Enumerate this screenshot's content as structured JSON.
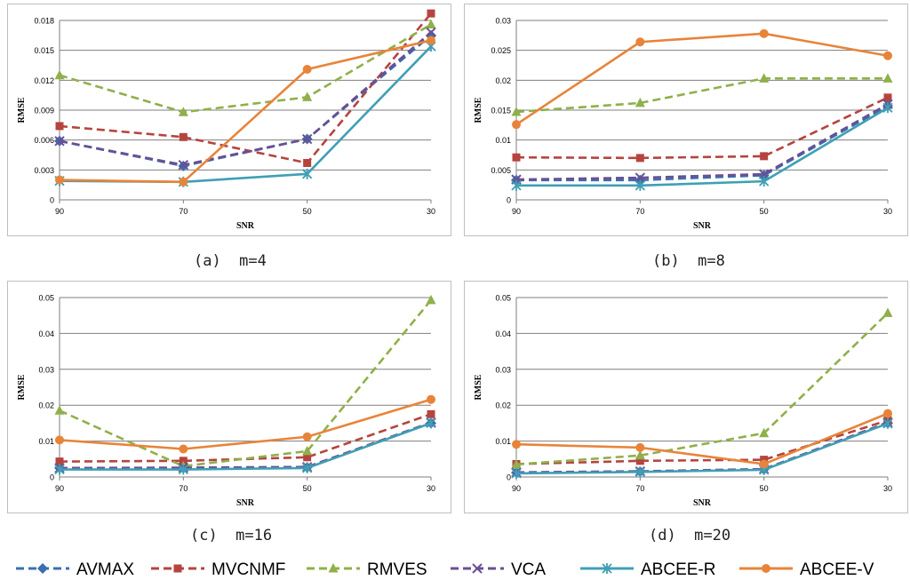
{
  "legend": {
    "items": [
      {
        "name": "AVMAX",
        "color": "#3a6fb0",
        "marker": "diamond",
        "dashed": true
      },
      {
        "name": "MVCNMF",
        "color": "#b5443f",
        "marker": "square",
        "dashed": true
      },
      {
        "name": "RMVES",
        "color": "#8fb04a",
        "marker": "triangle",
        "dashed": true
      },
      {
        "name": "VCA",
        "color": "#6b4f93",
        "marker": "x",
        "dashed": true
      },
      {
        "name": "ABCEE-R",
        "color": "#3f9fb5",
        "marker": "star",
        "dashed": false
      },
      {
        "name": "ABCEE-V",
        "color": "#e8843a",
        "marker": "circle",
        "dashed": false
      }
    ]
  },
  "chart_data": [
    {
      "type": "line",
      "caption": "(a)  m=4",
      "categories": [
        "90",
        "70",
        "50",
        "30"
      ],
      "xlabel": "SNR",
      "ylabel": "RMSE",
      "ylim": [
        0,
        0.018
      ],
      "yticks": [
        0,
        0.003,
        0.006,
        0.009,
        0.012,
        0.015,
        0.018
      ],
      "yticklabels": [
        "0",
        "0.003",
        "0.006",
        "0.009",
        "0.012",
        "0.015",
        "0.018"
      ],
      "series": [
        {
          "name": "AVMAX",
          "values": [
            0.0059,
            0.0034,
            0.0061,
            0.0165
          ]
        },
        {
          "name": "MVCNMF",
          "values": [
            0.0074,
            0.0063,
            0.0037,
            0.0187
          ]
        },
        {
          "name": "RMVES",
          "values": [
            0.0125,
            0.0088,
            0.0103,
            0.0176
          ]
        },
        {
          "name": "VCA",
          "values": [
            0.0059,
            0.0035,
            0.0061,
            0.0168
          ]
        },
        {
          "name": "ABCEE-R",
          "values": [
            0.0019,
            0.0018,
            0.0026,
            0.0154
          ]
        },
        {
          "name": "ABCEE-V",
          "values": [
            0.002,
            0.0018,
            0.0131,
            0.016
          ]
        }
      ]
    },
    {
      "type": "line",
      "caption": "(b)  m=8",
      "categories": [
        "90",
        "70",
        "50",
        "30"
      ],
      "xlabel": "SNR",
      "ylabel": "RMSE",
      "ylim": [
        0,
        0.03
      ],
      "yticks": [
        0,
        0.005,
        0.01,
        0.015,
        0.02,
        0.025,
        0.03
      ],
      "yticklabels": [
        "0",
        "0.005",
        "0.01",
        "0.015",
        "0.02",
        "0.025",
        "0.03"
      ],
      "series": [
        {
          "name": "AVMAX",
          "values": [
            0.0033,
            0.0033,
            0.0041,
            0.0157
          ]
        },
        {
          "name": "MVCNMF",
          "values": [
            0.0071,
            0.007,
            0.0073,
            0.0171
          ]
        },
        {
          "name": "RMVES",
          "values": [
            0.0147,
            0.0162,
            0.0203,
            0.0203
          ]
        },
        {
          "name": "VCA",
          "values": [
            0.0034,
            0.0037,
            0.0043,
            0.016
          ]
        },
        {
          "name": "ABCEE-R",
          "values": [
            0.0024,
            0.0024,
            0.0031,
            0.0154
          ]
        },
        {
          "name": "ABCEE-V",
          "values": [
            0.0126,
            0.0264,
            0.0278,
            0.0241
          ]
        }
      ]
    },
    {
      "type": "line",
      "caption": "(c)  m=16",
      "categories": [
        "90",
        "70",
        "50",
        "30"
      ],
      "xlabel": "SNR",
      "ylabel": "RMSE",
      "ylim": [
        0,
        0.05
      ],
      "yticks": [
        0,
        0.01,
        0.02,
        0.03,
        0.04,
        0.05
      ],
      "yticklabels": [
        "0",
        "0.01",
        "0.02",
        "0.03",
        "0.04",
        "0.05"
      ],
      "series": [
        {
          "name": "AVMAX",
          "values": [
            0.0025,
            0.0025,
            0.0027,
            0.015
          ]
        },
        {
          "name": "MVCNMF",
          "values": [
            0.0043,
            0.0045,
            0.0055,
            0.0175
          ]
        },
        {
          "name": "RMVES",
          "values": [
            0.0185,
            0.003,
            0.0072,
            0.0493
          ]
        },
        {
          "name": "VCA",
          "values": [
            0.0025,
            0.0026,
            0.0028,
            0.0152
          ]
        },
        {
          "name": "ABCEE-R",
          "values": [
            0.0021,
            0.0021,
            0.0025,
            0.015
          ]
        },
        {
          "name": "ABCEE-V",
          "values": [
            0.0103,
            0.0078,
            0.0112,
            0.0216
          ]
        }
      ]
    },
    {
      "type": "line",
      "caption": "(d)  m=20",
      "categories": [
        "90",
        "70",
        "50",
        "30"
      ],
      "xlabel": "SNR",
      "ylabel": "RMSE",
      "ylim": [
        0,
        0.05
      ],
      "yticks": [
        0,
        0.01,
        0.02,
        0.03,
        0.04,
        0.05
      ],
      "yticklabels": [
        "0",
        "0.01",
        "0.02",
        "0.03",
        "0.04",
        "0.05"
      ],
      "series": [
        {
          "name": "AVMAX",
          "values": [
            0.0012,
            0.0015,
            0.0021,
            0.015
          ]
        },
        {
          "name": "MVCNMF",
          "values": [
            0.0036,
            0.0045,
            0.0048,
            0.0158
          ]
        },
        {
          "name": "RMVES",
          "values": [
            0.0035,
            0.006,
            0.0122,
            0.0457
          ]
        },
        {
          "name": "VCA",
          "values": [
            0.0013,
            0.0016,
            0.0022,
            0.0152
          ]
        },
        {
          "name": "ABCEE-R",
          "values": [
            0.001,
            0.0014,
            0.002,
            0.0149
          ]
        },
        {
          "name": "ABCEE-V",
          "values": [
            0.0091,
            0.0082,
            0.0036,
            0.0177
          ]
        }
      ]
    }
  ]
}
